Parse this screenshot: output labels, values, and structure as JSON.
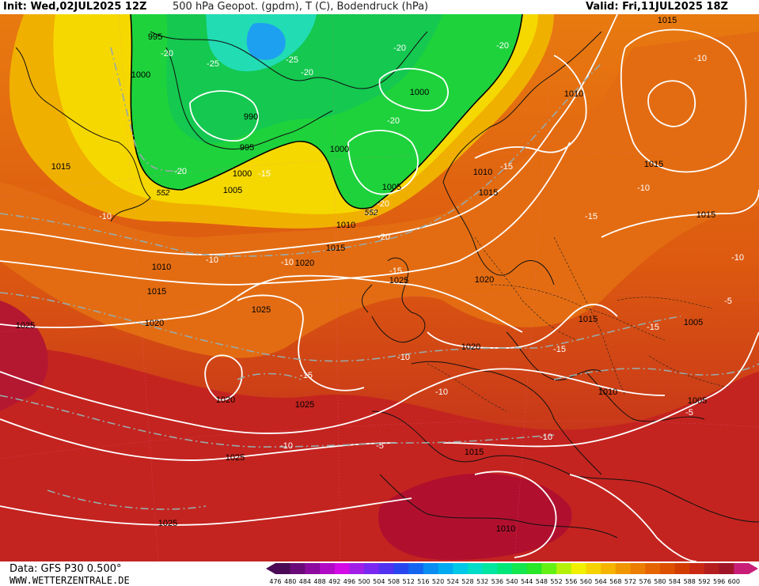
{
  "header": {
    "init": "Init: Wed,02JUL2025 12Z",
    "title": "500 hPa Geopot. (gpdm), T (C), Bodendruck (hPa)",
    "valid": "Valid: Fri,11JUL2025 18Z"
  },
  "footer": {
    "source": "Data: GFS P30 0.500°",
    "site": "WWW.WETTERZENTRALE.DE"
  },
  "colorbar": {
    "ticks": [
      "476",
      "480",
      "484",
      "488",
      "492",
      "496",
      "500",
      "504",
      "508",
      "512",
      "516",
      "520",
      "524",
      "528",
      "532",
      "536",
      "540",
      "544",
      "548",
      "552",
      "556",
      "560",
      "564",
      "568",
      "572",
      "576",
      "580",
      "584",
      "588",
      "592",
      "596",
      "600"
    ],
    "colors": [
      "#4b0a55",
      "#6a0a78",
      "#8c0a9e",
      "#b00ac4",
      "#d20ae6",
      "#a01ee6",
      "#7828f0",
      "#5032f0",
      "#2846f0",
      "#1464f0",
      "#0a8cf0",
      "#00aaf0",
      "#00c8e6",
      "#00dcc8",
      "#00e6a0",
      "#00e678",
      "#14e650",
      "#28e628",
      "#64f014",
      "#b4f00a",
      "#f0f000",
      "#f5d200",
      "#f5b400",
      "#f09600",
      "#eb7d00",
      "#e66400",
      "#dc5000",
      "#d23c00",
      "#c82814",
      "#b41e1e",
      "#a01428",
      "#c81e78"
    ]
  },
  "map": {
    "pressure_labels": [
      "995",
      "1000",
      "990",
      "995",
      "1000",
      "1005",
      "1000",
      "1000",
      "1010",
      "1005",
      "1010",
      "1015",
      "1015",
      "1010",
      "1015",
      "1020",
      "1025",
      "1015",
      "1020",
      "1025",
      "1025",
      "1020",
      "1025",
      "1020",
      "1015",
      "1020",
      "1015",
      "1010",
      "1015",
      "1025",
      "1025",
      "1010",
      "1015",
      "1005",
      "1005",
      "1015",
      "1010"
    ],
    "temperature_labels": [
      "-20",
      "-25",
      "-25",
      "-20",
      "-20",
      "-20",
      "-20",
      "-20",
      "-15",
      "-20",
      "-20",
      "-20",
      "-15",
      "-10",
      "-10",
      "-15",
      "-15",
      "-10",
      "-10",
      "-15",
      "-15",
      "-10",
      "-10",
      "-10",
      "-5",
      "-10",
      "-15",
      "-10",
      "-5",
      "-10",
      "-5"
    ],
    "geopotential_labels": [
      "552",
      "552"
    ]
  }
}
